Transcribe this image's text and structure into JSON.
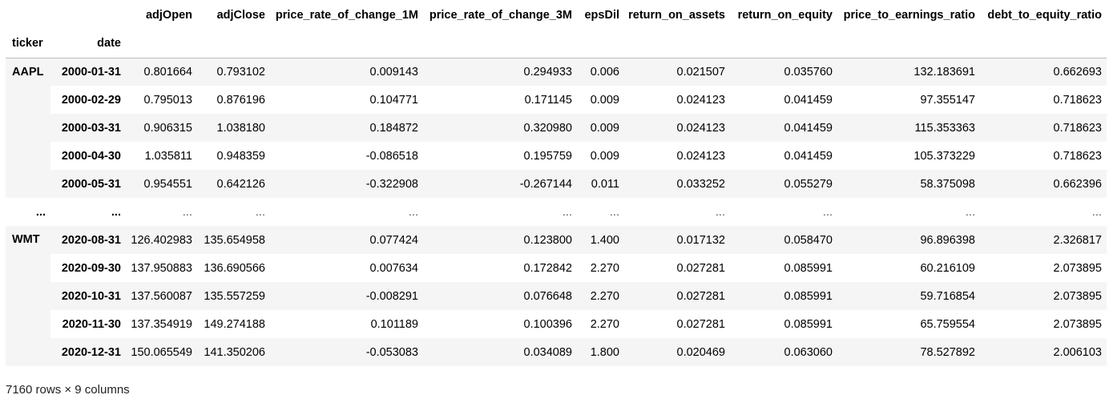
{
  "index_names": [
    "ticker",
    "date"
  ],
  "columns": [
    "adjOpen",
    "adjClose",
    "price_rate_of_change_1M",
    "price_rate_of_change_3M",
    "epsDil",
    "return_on_assets",
    "return_on_equity",
    "price_to_earnings_ratio",
    "debt_to_equity_ratio"
  ],
  "ellipsis": "...",
  "rows": [
    {
      "ticker": "AAPL",
      "date": "2000-01-31",
      "values": [
        "0.801664",
        "0.793102",
        "0.009143",
        "0.294933",
        "0.006",
        "0.021507",
        "0.035760",
        "132.183691",
        "0.662693"
      ]
    },
    {
      "ticker": "",
      "date": "2000-02-29",
      "values": [
        "0.795013",
        "0.876196",
        "0.104771",
        "0.171145",
        "0.009",
        "0.024123",
        "0.041459",
        "97.355147",
        "0.718623"
      ]
    },
    {
      "ticker": "",
      "date": "2000-03-31",
      "values": [
        "0.906315",
        "1.038180",
        "0.184872",
        "0.320980",
        "0.009",
        "0.024123",
        "0.041459",
        "115.353363",
        "0.718623"
      ]
    },
    {
      "ticker": "",
      "date": "2000-04-30",
      "values": [
        "1.035811",
        "0.948359",
        "-0.086518",
        "0.195759",
        "0.009",
        "0.024123",
        "0.041459",
        "105.373229",
        "0.718623"
      ]
    },
    {
      "ticker": "",
      "date": "2000-05-31",
      "values": [
        "0.954551",
        "0.642126",
        "-0.322908",
        "-0.267144",
        "0.011",
        "0.033252",
        "0.055279",
        "58.375098",
        "0.662396"
      ]
    },
    {
      "ticker": "WMT",
      "date": "2020-08-31",
      "values": [
        "126.402983",
        "135.654958",
        "0.077424",
        "0.123800",
        "1.400",
        "0.017132",
        "0.058470",
        "96.896398",
        "2.326817"
      ]
    },
    {
      "ticker": "",
      "date": "2020-09-30",
      "values": [
        "137.950883",
        "136.690566",
        "0.007634",
        "0.172842",
        "2.270",
        "0.027281",
        "0.085991",
        "60.216109",
        "2.073895"
      ]
    },
    {
      "ticker": "",
      "date": "2020-10-31",
      "values": [
        "137.560087",
        "135.557259",
        "-0.008291",
        "0.076648",
        "2.270",
        "0.027281",
        "0.085991",
        "59.716854",
        "2.073895"
      ]
    },
    {
      "ticker": "",
      "date": "2020-11-30",
      "values": [
        "137.354919",
        "149.274188",
        "0.101189",
        "0.100396",
        "2.270",
        "0.027281",
        "0.085991",
        "65.759554",
        "2.073895"
      ]
    },
    {
      "ticker": "",
      "date": "2020-12-31",
      "values": [
        "150.065549",
        "141.350206",
        "-0.053083",
        "0.034089",
        "1.800",
        "0.020469",
        "0.063060",
        "78.527892",
        "2.006103"
      ]
    }
  ],
  "footer": "7160 rows × 9 columns"
}
